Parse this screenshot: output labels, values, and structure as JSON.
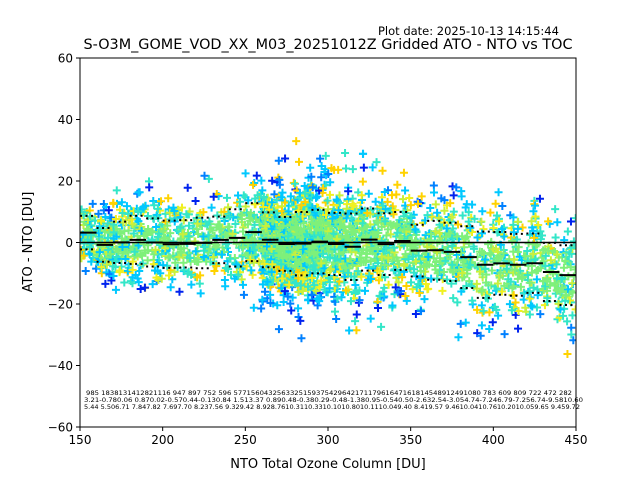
{
  "plot_date": "Plot date: 2025-10-13 14:15:44",
  "chart_data": {
    "type": "scatter",
    "title": "S-O3M_GOME_VOD_XX_M03_20251012Z Gridded ATO - NTO vs TOC",
    "xlabel": "NTO Total Ozone Column [DU]",
    "ylabel": "ATO - NTO [DU]",
    "xlim": [
      150,
      450
    ],
    "ylim": [
      -60,
      60
    ],
    "xticks": [
      150,
      200,
      250,
      300,
      350,
      400,
      450
    ],
    "yticks": [
      -60,
      -40,
      -20,
      0,
      20,
      40,
      60
    ],
    "xtick_labels": [
      "150",
      "200",
      "250",
      "300",
      "350",
      "400",
      "450"
    ],
    "ytick_labels": [
      "−60",
      "−40",
      "−20",
      "0",
      "20",
      "40",
      "60"
    ],
    "grid": false,
    "marker": "+",
    "zero_line": 0,
    "colormap": [
      "#0022ee",
      "#0080ff",
      "#00c8ff",
      "#33e6c8",
      "#7ef07a",
      "#c8f03c",
      "#f0f020",
      "#ffd200"
    ],
    "bin_width": 10,
    "bin_centers": [
      155,
      165,
      175,
      185,
      195,
      205,
      215,
      225,
      235,
      245,
      255,
      265,
      275,
      285,
      295,
      305,
      315,
      325,
      335,
      345,
      355,
      365,
      375,
      385,
      395,
      405,
      415,
      425,
      435,
      445
    ],
    "counts": [
      985,
      1838,
      1314,
      1282,
      1116,
      947,
      897,
      752,
      596,
      577,
      1560,
      4325,
      6332,
      5159,
      3754,
      2964,
      2171,
      1796,
      1647,
      1618,
      1454,
      489,
      1249,
      1080,
      783,
      609,
      809,
      722,
      472,
      282
    ],
    "mean": [
      3.21,
      -0.78,
      0.06,
      0.87,
      0.02,
      -0.57,
      -0.44,
      -0.13,
      0.84,
      1.51,
      3.37,
      0.89,
      -0.48,
      -0.38,
      0.29,
      -0.48,
      -1.38,
      0.95,
      -0.54,
      0.5,
      -2.63,
      -2.54,
      -3.05,
      -4.74,
      -7.24,
      -6.79,
      -7.25,
      -6.74,
      -9.58,
      -10.6
    ],
    "std": [
      5.44,
      5.5,
      6.71,
      7.84,
      7.82,
      7.69,
      7.7,
      8.23,
      7.56,
      9.32,
      9.42,
      8.92,
      8.76,
      10.31,
      10.33,
      10.1,
      10.8,
      10.11,
      10.04,
      9.4,
      8.41,
      9.57,
      9.46,
      10.04,
      10.76,
      10.2,
      10.05,
      9.65,
      9.45,
      9.72
    ],
    "stats_rows": [
      "985 1838131412821116 947 897  752  596  577156043256332515937542964217117961647161814548912491080 783  609  809  722  472  282",
      "3.21-0.780.06 0.870.02-0.570.44-0.130.84 1.513.37 0.890.48-0.380.29-0.48-1.380.95-0.540.50-2.632.54-3.054.74-7.246.79-7.256.74-9.5810.60",
      "5.44 5.506.71 7.847.82 7.697.70 8.237.56 9.329.42 8.928.7610.3110.3310.1010.8010.1110.049.40 8.419.57 9.4610.0410.7610.2010.059.65 9.459.72"
    ]
  }
}
